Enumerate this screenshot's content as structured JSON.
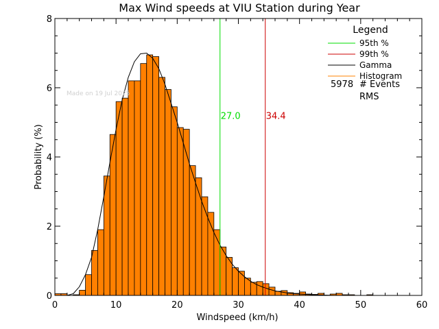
{
  "chart_data": {
    "type": "bar",
    "title": "Max Wind speeds at VIU Station during Year",
    "xlabel": "Windspeed (km/h)",
    "ylabel": "Probability  (%)",
    "xlim": [
      0,
      60
    ],
    "ylim": [
      0,
      8
    ],
    "xticks": [
      0,
      10,
      20,
      30,
      40,
      50,
      60
    ],
    "yticks": [
      0,
      2,
      4,
      6,
      8
    ],
    "bin_width": 1,
    "histogram": {
      "bin_starts": [
        0,
        1,
        2,
        3,
        4,
        5,
        6,
        7,
        8,
        9,
        10,
        11,
        12,
        13,
        14,
        15,
        16,
        17,
        18,
        19,
        20,
        21,
        22,
        23,
        24,
        25,
        26,
        27,
        28,
        29,
        30,
        31,
        32,
        33,
        34,
        35,
        36,
        37,
        38,
        39,
        40,
        41,
        42,
        43,
        44,
        45,
        46,
        47,
        48,
        49,
        50,
        51,
        52,
        53,
        54,
        55,
        56,
        57,
        58,
        59
      ],
      "values": [
        0.05,
        0.05,
        0.0,
        0.02,
        0.15,
        0.6,
        1.3,
        1.9,
        3.45,
        4.65,
        5.6,
        5.7,
        6.2,
        6.2,
        6.7,
        6.95,
        6.9,
        6.3,
        5.95,
        5.45,
        4.85,
        4.8,
        3.75,
        3.4,
        2.85,
        2.4,
        1.9,
        1.4,
        1.1,
        0.8,
        0.7,
        0.5,
        0.38,
        0.4,
        0.34,
        0.24,
        0.12,
        0.14,
        0.08,
        0.06,
        0.1,
        0.04,
        0.03,
        0.06,
        0.0,
        0.04,
        0.06,
        0.02,
        0.02,
        0.0,
        0.0,
        0.02,
        0.0,
        0.0,
        0.0,
        0.0,
        0.0,
        0.0,
        0.0,
        0.0
      ],
      "color": "#ff8000"
    },
    "gamma_fit": {
      "x": [
        2,
        3,
        4,
        5,
        6,
        7,
        8,
        9,
        10,
        11,
        12,
        13,
        14,
        15,
        16,
        17,
        18,
        19,
        20,
        21,
        22,
        23,
        24,
        25,
        26,
        27,
        28,
        29,
        30,
        31,
        32,
        33,
        34,
        35,
        36,
        37,
        38,
        39,
        40,
        42,
        44,
        46,
        48,
        50,
        55,
        60
      ],
      "y": [
        0.0,
        0.05,
        0.25,
        0.6,
        1.1,
        1.9,
        2.85,
        3.85,
        4.8,
        5.65,
        6.3,
        6.75,
        6.98,
        7.0,
        6.85,
        6.55,
        6.1,
        5.55,
        5.0,
        4.4,
        3.8,
        3.25,
        2.72,
        2.25,
        1.82,
        1.45,
        1.15,
        0.9,
        0.7,
        0.54,
        0.41,
        0.31,
        0.24,
        0.18,
        0.13,
        0.1,
        0.07,
        0.05,
        0.04,
        0.02,
        0.01,
        0.0,
        0.0,
        0.0,
        0.0,
        0.0
      ],
      "color": "#000000"
    },
    "percentile_95": {
      "value": 27.0,
      "label": "27.0",
      "color": "#00dd00"
    },
    "percentile_99": {
      "value": 34.4,
      "label": "34.4",
      "color": "#cc0000"
    },
    "legend": {
      "title": "Legend",
      "placement": "top-right",
      "entries": [
        {
          "label": "95th %",
          "color": "#00dd00"
        },
        {
          "label": "99th %",
          "color": "#cc0000"
        },
        {
          "label": "Gamma",
          "color": "#000000"
        },
        {
          "label": "Histogram",
          "color": "#ff8000"
        }
      ],
      "events_count": "5978",
      "events_label": "# Events",
      "rms_label": "RMS"
    },
    "watermark": "Made on 19 Jul 2025"
  },
  "colors": {
    "background": "#ffffff",
    "axis": "#000000",
    "bar_fill": "#ff8000",
    "bar_edge": "#000000",
    "watermark": "#d0d0d0"
  }
}
